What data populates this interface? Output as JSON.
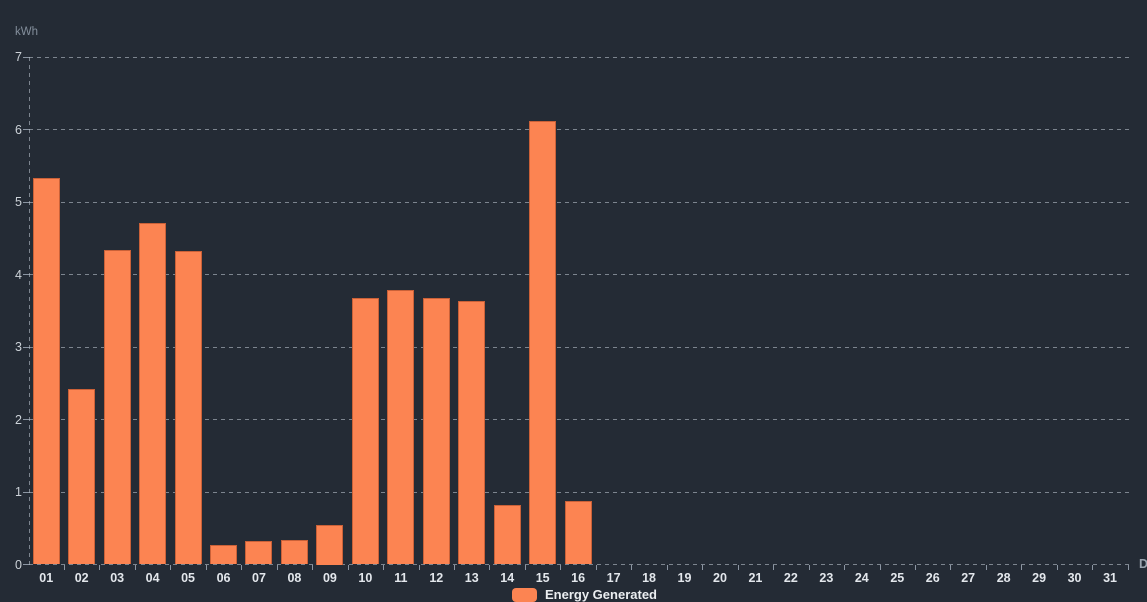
{
  "chart": {
    "unit_label": "kWh",
    "axis_name_fragment": "D",
    "legend": {
      "label": "Energy Generated",
      "swatch_color": "#fc8452"
    },
    "colors": {
      "background": "#242b35",
      "bar": "#fc8452",
      "gridline": "rgba(198,207,217,0.55)",
      "y_axis_label": "#ccd2d8",
      "x_axis_label": "#e3e7ec",
      "unit_label": "#838e9b"
    }
  },
  "chart_data": {
    "type": "bar",
    "title": "",
    "xlabel": "",
    "ylabel": "kWh",
    "categories": [
      "01",
      "02",
      "03",
      "04",
      "05",
      "06",
      "07",
      "08",
      "09",
      "10",
      "11",
      "12",
      "13",
      "14",
      "15",
      "16",
      "17",
      "18",
      "19",
      "20",
      "21",
      "22",
      "23",
      "24",
      "25",
      "26",
      "27",
      "28",
      "29",
      "30",
      "31"
    ],
    "series": [
      {
        "name": "Energy Generated",
        "color": "#fc8452",
        "values": [
          5.33,
          2.42,
          4.34,
          4.71,
          4.32,
          0.27,
          0.33,
          0.34,
          0.55,
          3.67,
          3.79,
          3.67,
          3.63,
          0.82,
          6.12,
          0.88,
          null,
          null,
          null,
          null,
          null,
          null,
          null,
          null,
          null,
          null,
          null,
          null,
          null,
          null,
          null
        ]
      }
    ],
    "ylim": [
      0,
      7
    ],
    "yticks": [
      0,
      1,
      2,
      3,
      4,
      5,
      6,
      7
    ],
    "grid": true,
    "grid_style": "dashed",
    "legend_position": "bottom-center"
  }
}
